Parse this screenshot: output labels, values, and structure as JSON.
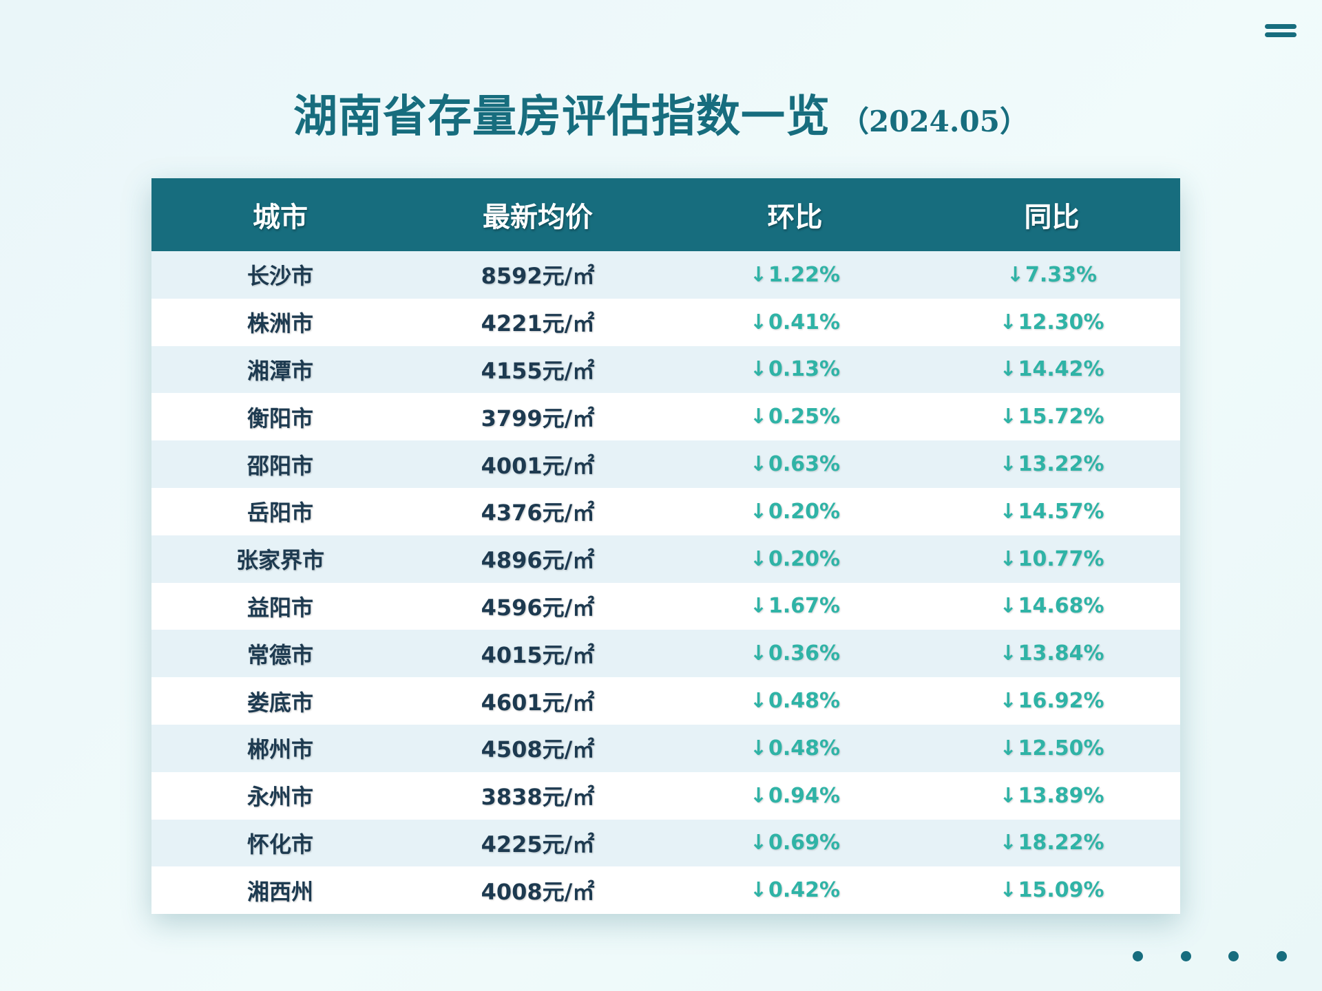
{
  "title": {
    "main": "湖南省存量房评估指数一览",
    "sub": "（2024.05）"
  },
  "table": {
    "headers": [
      "城市",
      "最新均价",
      "环比",
      "同比"
    ],
    "arrow": "↓",
    "rows": [
      {
        "city": "长沙市",
        "price": "8592元/㎡",
        "mom": "1.22%",
        "yoy": "7.33%"
      },
      {
        "city": "株洲市",
        "price": "4221元/㎡",
        "mom": "0.41%",
        "yoy": "12.30%"
      },
      {
        "city": "湘潭市",
        "price": "4155元/㎡",
        "mom": "0.13%",
        "yoy": "14.42%"
      },
      {
        "city": "衡阳市",
        "price": "3799元/㎡",
        "mom": "0.25%",
        "yoy": "15.72%"
      },
      {
        "city": "邵阳市",
        "price": "4001元/㎡",
        "mom": "0.63%",
        "yoy": "13.22%"
      },
      {
        "city": "岳阳市",
        "price": "4376元/㎡",
        "mom": "0.20%",
        "yoy": "14.57%"
      },
      {
        "city": "张家界市",
        "price": "4896元/㎡",
        "mom": "0.20%",
        "yoy": "10.77%"
      },
      {
        "city": "益阳市",
        "price": "4596元/㎡",
        "mom": "1.67%",
        "yoy": "14.68%"
      },
      {
        "city": "常德市",
        "price": "4015元/㎡",
        "mom": "0.36%",
        "yoy": "13.84%"
      },
      {
        "city": "娄底市",
        "price": "4601元/㎡",
        "mom": "0.48%",
        "yoy": "16.92%"
      },
      {
        "city": "郴州市",
        "price": "4508元/㎡",
        "mom": "0.48%",
        "yoy": "12.50%"
      },
      {
        "city": "永州市",
        "price": "3838元/㎡",
        "mom": "0.94%",
        "yoy": "13.89%"
      },
      {
        "city": "怀化市",
        "price": "4225元/㎡",
        "mom": "0.69%",
        "yoy": "18.22%"
      },
      {
        "city": "湘西州",
        "price": "4008元/㎡",
        "mom": "0.42%",
        "yoy": "15.09%"
      }
    ]
  },
  "icons": {
    "menu": "menu-icon",
    "pagination": "pagination-dots"
  },
  "pagination": {
    "count": 4
  },
  "colors": {
    "accent": "#176d7e",
    "change_down": "#2fb3a6",
    "text_dark": "#1d3a50",
    "row_alt": "#e6f2f7"
  }
}
